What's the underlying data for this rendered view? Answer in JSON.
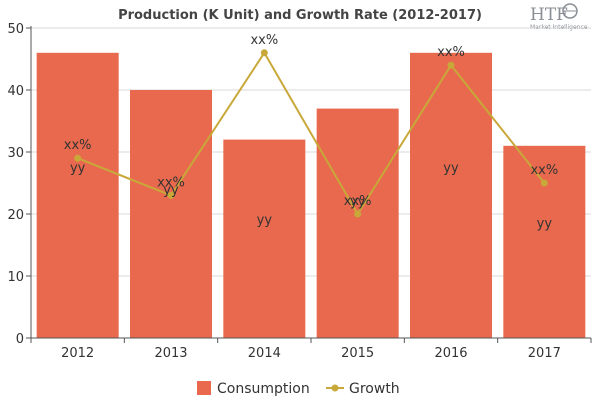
{
  "logo": {
    "text": "HTF",
    "subtext": "Market Intelligence"
  },
  "colors": {
    "bar": "#e8694d",
    "line": "#c9a83a",
    "grid": "#d9d9d9",
    "axis": "#555555"
  },
  "chart_data": {
    "type": "bar",
    "title": "Production (K Unit) and Growth Rate (2012-2017)",
    "xlabel": "",
    "ylabel": "",
    "ylim": [
      0,
      50
    ],
    "yticks": [
      0,
      10,
      20,
      30,
      40,
      50
    ],
    "categories": [
      "2012",
      "2013",
      "2014",
      "2015",
      "2016",
      "2017"
    ],
    "grid": true,
    "legend_position": "bottom",
    "series": [
      {
        "name": "Consumption",
        "type": "bar",
        "values": [
          46,
          40,
          32,
          37,
          46,
          31
        ],
        "labels": [
          "yy",
          "yy",
          "yy",
          "yy",
          "yy",
          "yy"
        ]
      },
      {
        "name": "Growth",
        "type": "line",
        "values": [
          29,
          23,
          46,
          20,
          44,
          25
        ],
        "labels": [
          "xx%",
          "xx%",
          "xx%",
          "xx%",
          "xx%",
          "xx%"
        ]
      }
    ]
  }
}
